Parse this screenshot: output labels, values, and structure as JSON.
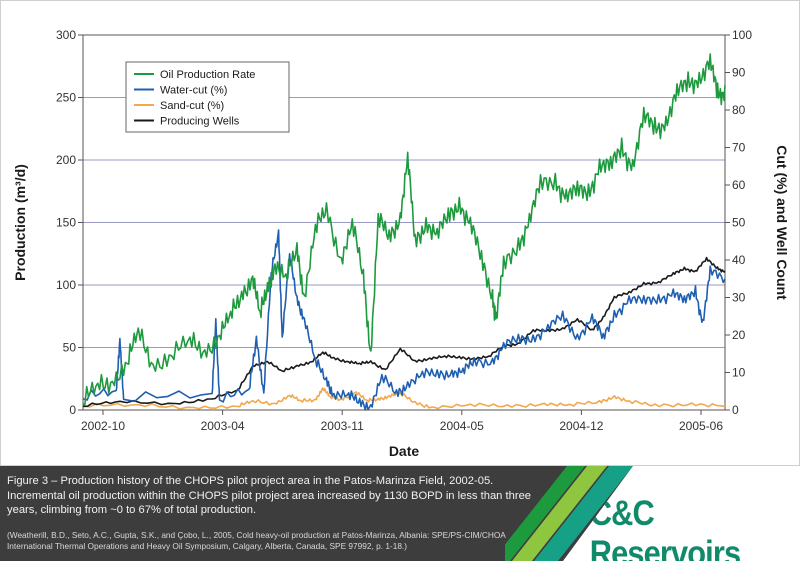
{
  "chart_data": {
    "type": "line",
    "title": "",
    "xlabel": "Date",
    "ylabel": "Production (m³/d)",
    "y2label": "Cut (%) and Well Count",
    "xticks": [
      "2002-10",
      "2003-04",
      "2003-11",
      "2004-05",
      "2004-12",
      "2005-06"
    ],
    "ylim": [
      0,
      300
    ],
    "yticks": [
      0,
      50,
      100,
      150,
      200,
      250,
      300
    ],
    "y2lim": [
      0,
      100
    ],
    "y2ticks": [
      0,
      10,
      20,
      30,
      40,
      50,
      60,
      70,
      80,
      90,
      100
    ],
    "grid": "horizontal",
    "legend_position": "top-left",
    "series": [
      {
        "name": "Oil Production Rate",
        "axis": "left",
        "color": "#1e9a3e",
        "points": [
          [
            0,
            5
          ],
          [
            0.4,
            15
          ],
          [
            0.8,
            28
          ],
          [
            1.2,
            38
          ],
          [
            1.5,
            58
          ],
          [
            1.9,
            40
          ],
          [
            2.4,
            45
          ],
          [
            2.9,
            50
          ],
          [
            3.3,
            50
          ],
          [
            3.7,
            62
          ],
          [
            4.0,
            70
          ],
          [
            4.3,
            95
          ],
          [
            4.6,
            110
          ],
          [
            4.8,
            70
          ],
          [
            5.0,
            100
          ],
          [
            5.2,
            120
          ],
          [
            5.5,
            100
          ],
          [
            5.8,
            130
          ],
          [
            6.0,
            95
          ],
          [
            6.3,
            140
          ],
          [
            6.6,
            160
          ],
          [
            7.0,
            125
          ],
          [
            7.3,
            145
          ],
          [
            7.6,
            105
          ],
          [
            7.8,
            50
          ],
          [
            8.0,
            150
          ],
          [
            8.3,
            135
          ],
          [
            8.6,
            160
          ],
          [
            8.8,
            200
          ],
          [
            9.0,
            130
          ],
          [
            9.3,
            155
          ],
          [
            9.6,
            140
          ],
          [
            9.9,
            150
          ],
          [
            10.2,
            170
          ],
          [
            10.5,
            150
          ],
          [
            10.8,
            115
          ],
          [
            11.1,
            95
          ],
          [
            11.2,
            75
          ],
          [
            11.4,
            110
          ],
          [
            11.8,
            135
          ],
          [
            12.1,
            155
          ],
          [
            12.4,
            175
          ],
          [
            12.8,
            185
          ],
          [
            13.1,
            175
          ],
          [
            13.4,
            170
          ],
          [
            13.7,
            175
          ],
          [
            14.0,
            200
          ],
          [
            14.3,
            190
          ],
          [
            14.6,
            210
          ],
          [
            14.9,
            200
          ],
          [
            15.2,
            230
          ],
          [
            15.5,
            225
          ],
          [
            15.8,
            235
          ],
          [
            16.1,
            250
          ],
          [
            16.4,
            260
          ],
          [
            16.7,
            270
          ],
          [
            17.0,
            275
          ],
          [
            17.2,
            250
          ],
          [
            17.4,
            260
          ]
        ]
      },
      {
        "name": "Water-cut (%)",
        "axis": "right",
        "color": "#1f5fb0",
        "points": [
          [
            0,
            3
          ],
          [
            0.9,
            4
          ],
          [
            1.0,
            20
          ],
          [
            1.1,
            3
          ],
          [
            3.5,
            3
          ],
          [
            3.6,
            25
          ],
          [
            3.7,
            3
          ],
          [
            4.5,
            4
          ],
          [
            4.7,
            20
          ],
          [
            4.9,
            5
          ],
          [
            5.1,
            35
          ],
          [
            5.3,
            48
          ],
          [
            5.4,
            20
          ],
          [
            5.6,
            40
          ],
          [
            5.8,
            30
          ],
          [
            6.0,
            25
          ],
          [
            6.3,
            12
          ],
          [
            6.6,
            8
          ],
          [
            6.8,
            5
          ],
          [
            7.2,
            3
          ],
          [
            7.5,
            2
          ],
          [
            7.8,
            2
          ],
          [
            8.1,
            8
          ],
          [
            8.5,
            4
          ],
          [
            8.8,
            8
          ],
          [
            9.2,
            9
          ],
          [
            9.6,
            9
          ],
          [
            10.0,
            11
          ],
          [
            10.3,
            10
          ],
          [
            10.6,
            12
          ],
          [
            11.1,
            14
          ],
          [
            11.4,
            17
          ],
          [
            11.8,
            18
          ],
          [
            12.2,
            20
          ],
          [
            12.6,
            22
          ],
          [
            13.0,
            24
          ],
          [
            13.4,
            20
          ],
          [
            13.8,
            25
          ],
          [
            14.1,
            18
          ],
          [
            14.4,
            26
          ],
          [
            14.8,
            30
          ],
          [
            15.2,
            28
          ],
          [
            15.6,
            30
          ],
          [
            16.0,
            32
          ],
          [
            16.3,
            28
          ],
          [
            16.6,
            32
          ],
          [
            16.8,
            24
          ],
          [
            17.0,
            36
          ],
          [
            17.4,
            35
          ]
        ]
      },
      {
        "name": "Sand-cut (%)",
        "axis": "right",
        "color": "#f0a94e",
        "points": [
          [
            0,
            1
          ],
          [
            1.5,
            1
          ],
          [
            3.0,
            1
          ],
          [
            4.2,
            1
          ],
          [
            4.6,
            2
          ],
          [
            5.2,
            2
          ],
          [
            5.6,
            4
          ],
          [
            5.9,
            2
          ],
          [
            6.3,
            3
          ],
          [
            6.5,
            6
          ],
          [
            6.7,
            3
          ],
          [
            7.0,
            3
          ],
          [
            7.4,
            5
          ],
          [
            7.7,
            2
          ],
          [
            8.0,
            3
          ],
          [
            8.3,
            4
          ],
          [
            8.6,
            4
          ],
          [
            9.0,
            2
          ],
          [
            9.5,
            1
          ],
          [
            10.5,
            1
          ],
          [
            11.5,
            1
          ],
          [
            12.5,
            2
          ],
          [
            13.2,
            1
          ],
          [
            14.0,
            2
          ],
          [
            14.4,
            4
          ],
          [
            14.8,
            2
          ],
          [
            15.5,
            1
          ],
          [
            16.5,
            2
          ],
          [
            17.4,
            1
          ]
        ]
      },
      {
        "name": "Producing Wells",
        "axis": "right",
        "color": "#1a1a1a",
        "points": [
          [
            0,
            1
          ],
          [
            1.0,
            2
          ],
          [
            2.5,
            2
          ],
          [
            3.5,
            3
          ],
          [
            4.2,
            5
          ],
          [
            4.6,
            12
          ],
          [
            5.0,
            13
          ],
          [
            5.4,
            10
          ],
          [
            5.8,
            12
          ],
          [
            6.2,
            13
          ],
          [
            6.5,
            15
          ],
          [
            6.8,
            14
          ],
          [
            7.2,
            13
          ],
          [
            7.5,
            12
          ],
          [
            7.8,
            13
          ],
          [
            8.2,
            11
          ],
          [
            8.6,
            16
          ],
          [
            9.0,
            13
          ],
          [
            9.4,
            14
          ],
          [
            9.8,
            14
          ],
          [
            10.2,
            14
          ],
          [
            10.6,
            14
          ],
          [
            11.0,
            14
          ],
          [
            11.4,
            17
          ],
          [
            11.8,
            18
          ],
          [
            12.2,
            21
          ],
          [
            12.6,
            21
          ],
          [
            13.0,
            22
          ],
          [
            13.4,
            24
          ],
          [
            13.8,
            21
          ],
          [
            14.1,
            25
          ],
          [
            14.4,
            30
          ],
          [
            14.8,
            31
          ],
          [
            15.2,
            34
          ],
          [
            15.6,
            34
          ],
          [
            16.0,
            36
          ],
          [
            16.3,
            38
          ],
          [
            16.6,
            37
          ],
          [
            16.9,
            40
          ],
          [
            17.2,
            38
          ],
          [
            17.4,
            37
          ]
        ]
      }
    ]
  },
  "caption": {
    "text": "Figure 3 – Production history of the CHOPS pilot project area in the Patos-Marinza Field, 2002-05. Incremental oil production within the CHOPS pilot project area increased by 1130 BOPD in less than three years, climbing from ~0 to 67% of total production.",
    "citation": "(Weatherill, B.D., Seto, A.C., Gupta, S.K., and Çobo, L., 2005, Cold heavy-oil production at Patos-Marinza, Albania: SPE/PS-CIM/CHOA International Thermal Operations and Heavy Oil Symposium, Calgary, Alberta, Canada, SPE 97992, p. 1-18.)"
  },
  "brand": {
    "logo_text": "C&C Reservoirs",
    "logo_color": "#0f8a6a",
    "stripe_colors": [
      "#1e9a3e",
      "#8ec640",
      "#16a085"
    ]
  }
}
